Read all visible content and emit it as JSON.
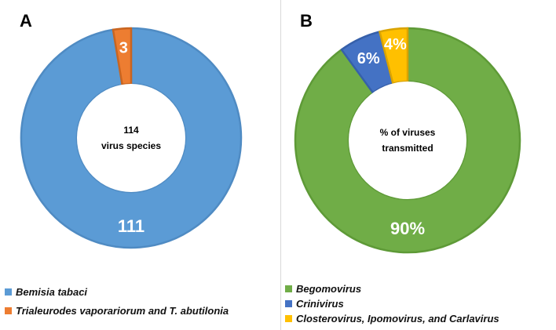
{
  "chart_data": [
    {
      "type": "pie",
      "variant": "donut",
      "panel_label": "A",
      "center_text": [
        "114",
        "virus species"
      ],
      "slices": [
        {
          "label": "Bemisia tabaci",
          "value": 111,
          "data_label": "111",
          "color": "#5b9bd5",
          "border": "#4f8bc3"
        },
        {
          "label": "Trialeurodes vaporariorum and T. abutilonia",
          "value": 3,
          "data_label": "3",
          "color": "#ed7d31",
          "border": "#c96520"
        }
      ],
      "legend_position": "bottom-left"
    },
    {
      "type": "pie",
      "variant": "donut",
      "panel_label": "B",
      "center_text": [
        "% of viruses",
        "transmitted"
      ],
      "slices": [
        {
          "label": "Begomovirus",
          "value": 90,
          "data_label": "90%",
          "color": "#70ad47",
          "border": "#5e9a37"
        },
        {
          "label": "Crinivirus",
          "value": 6,
          "data_label": "6%",
          "color": "#4472c4",
          "border": "#3660aa"
        },
        {
          "label": "Closterovirus, Ipomovirus, and Carlavirus",
          "value": 4,
          "data_label": "4%",
          "color": "#ffc000",
          "border": "#d9a300"
        }
      ],
      "legend_position": "bottom-left"
    }
  ]
}
